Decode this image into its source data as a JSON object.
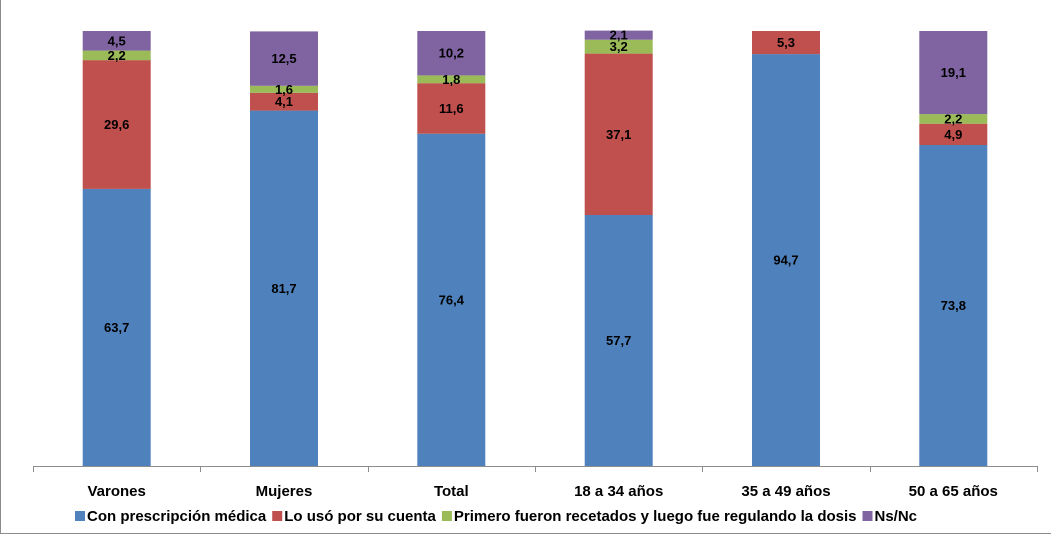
{
  "chart_data": {
    "type": "bar",
    "stacked": true,
    "categories": [
      "Varones",
      "Mujeres",
      "Total",
      "18 a 34 años",
      "35 a 49 años",
      "50 a 65 años"
    ],
    "series": [
      {
        "name": "Con prescripción médica",
        "color": "#4f81bd",
        "values": [
          63.7,
          81.7,
          76.4,
          57.7,
          94.7,
          73.8
        ],
        "labels": [
          "63,7",
          "81,7",
          "76,4",
          "57,7",
          "94,7",
          "73,8"
        ]
      },
      {
        "name": "Lo usó por su cuenta",
        "color": "#c0504d",
        "values": [
          29.6,
          4.1,
          11.6,
          37.1,
          5.3,
          4.9
        ],
        "labels": [
          "29,6",
          "4,1",
          "11,6",
          "37,1",
          "5,3",
          "4,9"
        ]
      },
      {
        "name": "Primero fueron recetados y luego fue regulando la dosis",
        "color": "#9bbb59",
        "values": [
          2.2,
          1.6,
          1.8,
          3.2,
          0,
          2.2
        ],
        "labels": [
          "2,2",
          "1,6",
          "1,8",
          "3,2",
          "",
          "2,2"
        ]
      },
      {
        "name": "Ns/Nc",
        "color": "#8064a2",
        "values": [
          4.5,
          12.5,
          10.2,
          2.1,
          0,
          19.1
        ],
        "labels": [
          "4,5",
          "12,5",
          "10,2",
          "2,1",
          "",
          "19,1"
        ]
      }
    ],
    "ylim": [
      0,
      100
    ],
    "legend_position": "bottom",
    "grid": false
  }
}
